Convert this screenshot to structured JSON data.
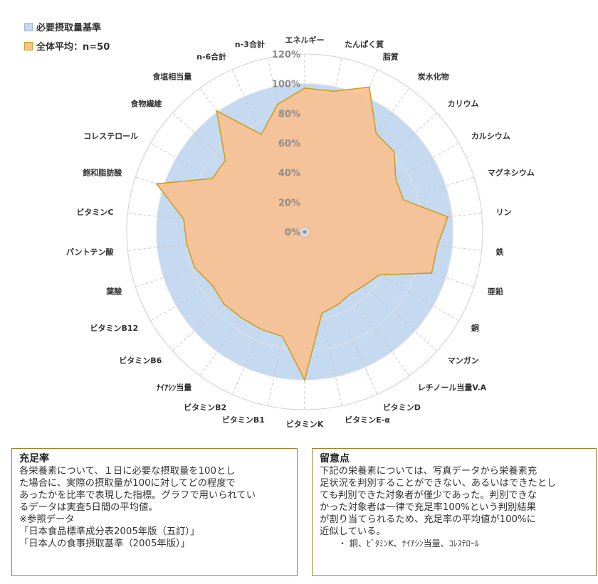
{
  "chart_data": {
    "type": "radar",
    "categories": [
      "エネルギー",
      "たんぱく質",
      "脂質",
      "炭水化物",
      "カリウム",
      "カルシウム",
      "マグネシウム",
      "リン",
      "鉄",
      "亜鉛",
      "銅",
      "マンガン",
      "レチノール当量V.A",
      "ビタミンD",
      "ビタミンE-α",
      "ビタミンK",
      "ビタミンB1",
      "ビタミンB2",
      "ﾅｲｱｼﾝ当量",
      "ビタミンB6",
      "ビタミンB12",
      "葉酸",
      "パントテン酸",
      "ビタミンC",
      "飽和脂肪酸",
      "コレステロール",
      "食物繊維",
      "食塩相当量",
      "n-6合計",
      "n-3合計"
    ],
    "series": [
      {
        "name": "必要摂取量基準",
        "color": "#c5d9f1",
        "values": [
          100,
          100,
          100,
          100,
          100,
          100,
          100,
          100,
          100,
          100,
          100,
          100,
          100,
          100,
          100,
          100,
          100,
          100,
          100,
          100,
          100,
          100,
          100,
          100,
          100,
          100,
          100,
          100,
          100,
          100
        ]
      },
      {
        "name": "全体平均：n=50",
        "color": "#fac090",
        "values": [
          97,
          97,
          107,
          82,
          81,
          71,
          70,
          97,
          90,
          90,
          58,
          54,
          52,
          54,
          56,
          100,
          72,
          72,
          72,
          73,
          72,
          78,
          80,
          82,
          105,
          72,
          72,
          101,
          72,
          88
        ]
      }
    ],
    "rlim": [
      0,
      120
    ],
    "rticks": [
      "0%",
      "20%",
      "40%",
      "60%",
      "80%",
      "100%",
      "120%"
    ],
    "legend_position": "top-left"
  },
  "legend": {
    "item1": "必要摂取量基準",
    "item2": "全体平均：n=50"
  },
  "box_left": {
    "title": "充足率",
    "lines": [
      "各栄養素について、１日に必要な摂取量を100とし",
      "た場合に、実際の摂取量が100に対してどの程度で",
      "あったかを比率で表現した指標。グラフで用いられてい",
      "るデータは実査5日間の平均値。",
      "※参照データ",
      "「日本食品標準成分表2005年版（五訂）」",
      "「日本人の食事摂取基準（2005年版）」"
    ]
  },
  "box_right": {
    "title": "留意点",
    "lines": [
      "下記の栄養素については、写真データから栄養素充",
      "足状況を判別することができない、あるいはできたとし",
      "ても判別できた対象者が僅少であった。判別できな",
      "かった対象者は一律で充足率100%という判別結果",
      "が割り当てられるため、充足率の平均値が100%に",
      "近似している。"
    ],
    "bullet": "・ 銅、ﾋﾞﾀﾐﾝK、ﾅｲｱｼﾝ当量、ｺﾚｽﾃﾛｰﾙ"
  }
}
